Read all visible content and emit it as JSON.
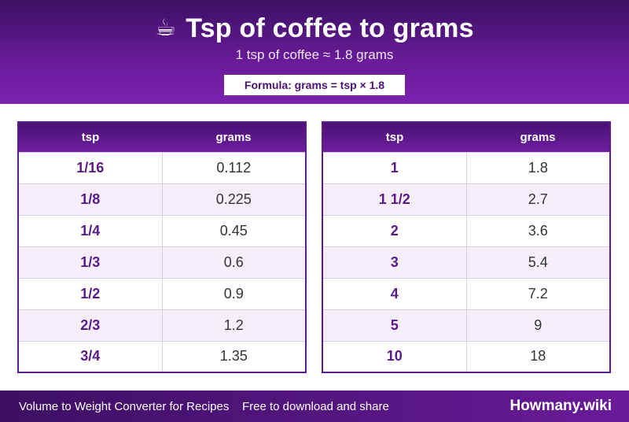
{
  "header": {
    "icon": "☕",
    "title": "Tsp of coffee to grams",
    "subtitle": "1 tsp of coffee ≈ 1.8 grams",
    "formula": "Formula: grams = tsp × 1.8"
  },
  "columns": {
    "tsp": "tsp",
    "grams": "grams"
  },
  "table_left": [
    {
      "tsp": "1/16",
      "grams": "0.112"
    },
    {
      "tsp": "1/8",
      "grams": "0.225"
    },
    {
      "tsp": "1/4",
      "grams": "0.45"
    },
    {
      "tsp": "1/3",
      "grams": "0.6"
    },
    {
      "tsp": "1/2",
      "grams": "0.9"
    },
    {
      "tsp": "2/3",
      "grams": "1.2"
    },
    {
      "tsp": "3/4",
      "grams": "1.35"
    }
  ],
  "table_right": [
    {
      "tsp": "1",
      "grams": "1.8"
    },
    {
      "tsp": "1 1/2",
      "grams": "2.7"
    },
    {
      "tsp": "2",
      "grams": "3.6"
    },
    {
      "tsp": "3",
      "grams": "5.4"
    },
    {
      "tsp": "4",
      "grams": "7.2"
    },
    {
      "tsp": "5",
      "grams": "9"
    },
    {
      "tsp": "10",
      "grams": "18"
    }
  ],
  "footer": {
    "left": "Volume to Weight Converter for Recipes",
    "mid": "Free to download and share",
    "brand": "Howmany.wiki"
  },
  "colors": {
    "brand_purple": "#6a1b9a",
    "dark_purple": "#3d0f63",
    "row_alt": "#f4effa"
  }
}
